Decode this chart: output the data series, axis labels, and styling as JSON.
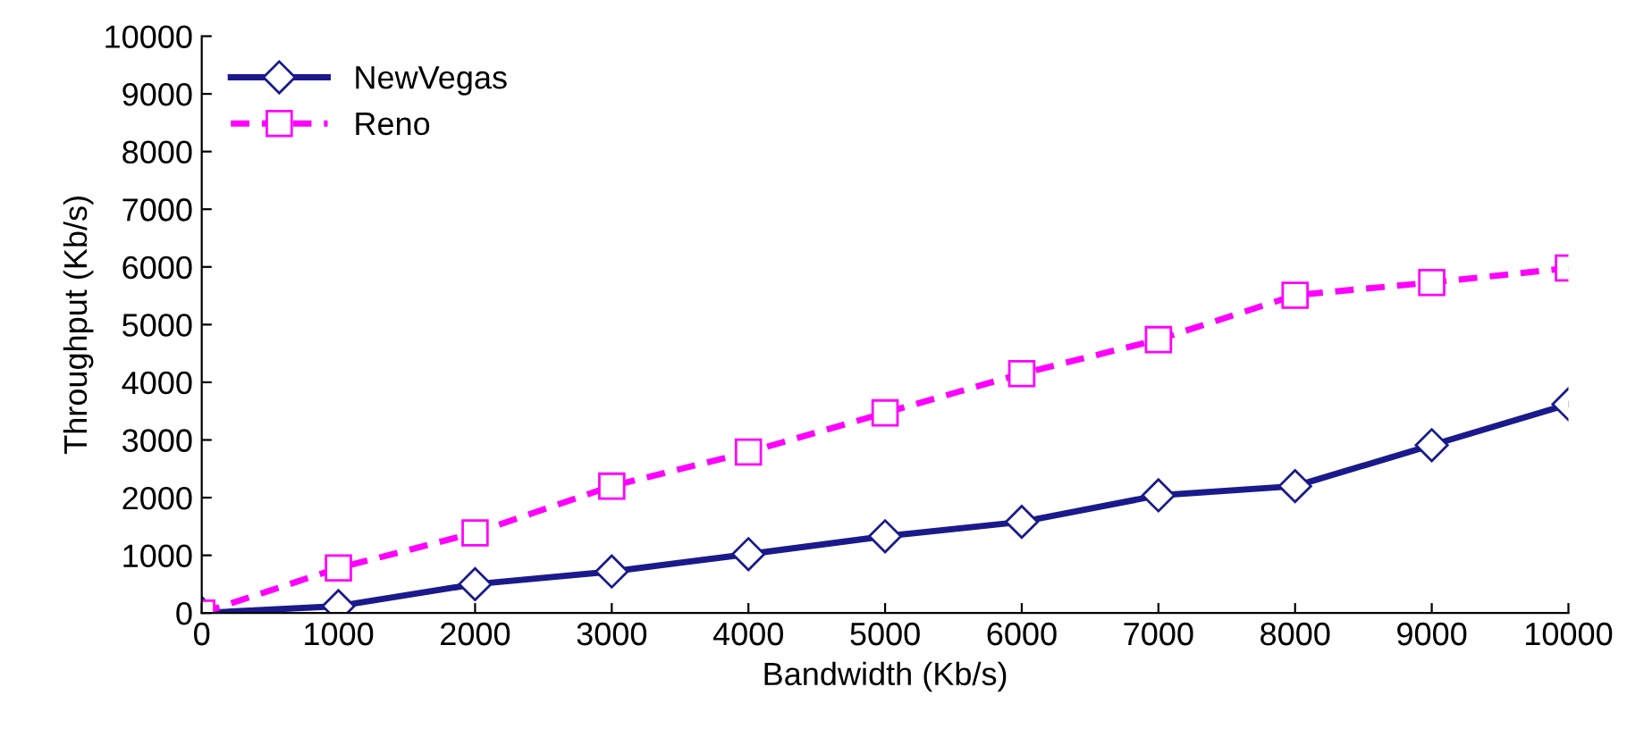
{
  "chart_data": {
    "type": "line",
    "xlabel": "Bandwidth (Kb/s)",
    "ylabel": "Throughput (Kb/s)",
    "x": [
      0,
      1000,
      2000,
      3000,
      4000,
      5000,
      6000,
      7000,
      8000,
      9000,
      10000
    ],
    "series": [
      {
        "name": "NewVegas",
        "color": "#1a1a8c",
        "marker": "diamond",
        "line_style": "solid",
        "values": [
          0,
          120,
          500,
          720,
          1020,
          1330,
          1580,
          2040,
          2200,
          2910,
          3620
        ]
      },
      {
        "name": "Reno",
        "color": "#ff00ff",
        "marker": "square",
        "line_style": "dashed",
        "values": [
          0,
          780,
          1390,
          2200,
          2790,
          3470,
          4150,
          4740,
          5510,
          5730,
          5980
        ]
      }
    ],
    "xlim": [
      0,
      10000
    ],
    "xticks": [
      0,
      1000,
      2000,
      3000,
      4000,
      5000,
      6000,
      7000,
      8000,
      9000,
      10000
    ],
    "ylim": [
      0,
      10000
    ],
    "yticks": [
      0,
      1000,
      2000,
      3000,
      4000,
      5000,
      6000,
      7000,
      8000,
      9000,
      10000
    ],
    "grid": false,
    "legend": "top left"
  }
}
